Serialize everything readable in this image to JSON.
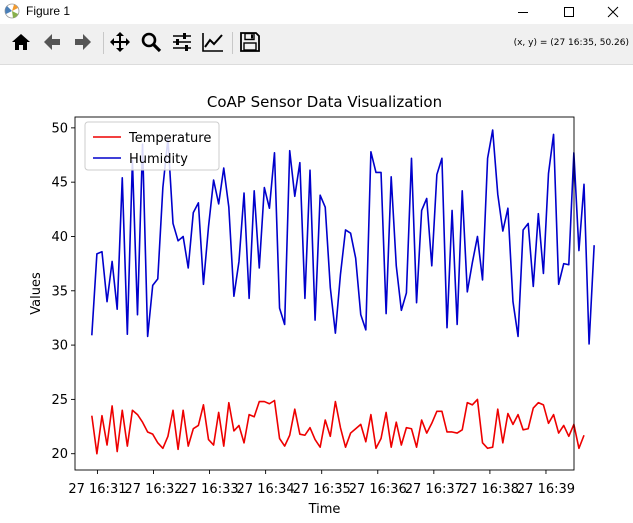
{
  "window": {
    "title": "Figure 1",
    "app_icon": "matplotlib-icon",
    "controls": [
      "minimize-icon",
      "maximize-icon",
      "close-icon"
    ]
  },
  "toolbar": {
    "buttons": [
      {
        "name": "home-button",
        "icon": "home-icon"
      },
      {
        "name": "back-button",
        "icon": "arrow-left-icon"
      },
      {
        "name": "forward-button",
        "icon": "arrow-right-icon"
      },
      {
        "name": "pan-button",
        "icon": "move-icon"
      },
      {
        "name": "zoom-button",
        "icon": "magnifier-icon"
      },
      {
        "name": "configure-subplots-button",
        "icon": "sliders-icon"
      },
      {
        "name": "edit-axis-button",
        "icon": "line-chart-icon"
      },
      {
        "name": "save-button",
        "icon": "floppy-icon"
      }
    ],
    "coords_readout": "(x, y) = (27 16:35, 50.26)"
  },
  "chart_data": {
    "type": "line",
    "title": "CoAP Sensor Data Visualization",
    "xlabel": "Time",
    "ylabel": "Values",
    "ylim": [
      18.5,
      51.0
    ],
    "y_ticks": [
      20,
      25,
      30,
      35,
      40,
      45,
      50
    ],
    "x_tick_labels": [
      "27 16:31",
      "27 16:32",
      "27 16:33",
      "27 16:34",
      "27 16:35",
      "27 16:36",
      "27 16:37",
      "27 16:38",
      "27 16:39"
    ],
    "x_start_minute": 30.9,
    "x_step_minutes": 0.0905,
    "xlim_minutes": [
      30.6,
      39.5
    ],
    "grid": false,
    "legend_position": "top-left",
    "series": [
      {
        "name": "Temperature",
        "color": "#ee0000",
        "values": [
          23.5,
          20.0,
          23.5,
          20.8,
          24.4,
          20.2,
          24.0,
          20.7,
          24.0,
          23.6,
          22.9,
          22.0,
          21.8,
          21.0,
          20.5,
          21.6,
          24.0,
          20.4,
          24.0,
          20.7,
          22.3,
          22.6,
          24.5,
          21.3,
          20.8,
          23.8,
          20.7,
          24.7,
          22.1,
          22.6,
          21.0,
          23.6,
          23.4,
          24.8,
          24.8,
          24.6,
          24.9,
          21.4,
          20.7,
          21.7,
          24.1,
          21.8,
          21.7,
          22.4,
          21.3,
          20.6,
          23.1,
          21.6,
          24.8,
          22.4,
          20.6,
          21.9,
          22.3,
          22.7,
          21.1,
          23.6,
          20.5,
          21.4,
          23.8,
          20.6,
          22.9,
          20.8,
          22.4,
          22.3,
          20.6,
          23.1,
          21.9,
          22.8,
          23.9,
          23.9,
          22.0,
          22.0,
          21.9,
          22.2,
          24.7,
          24.5,
          25.0,
          21.0,
          20.5,
          20.6,
          24.1,
          21.0,
          23.7,
          22.7,
          23.6,
          22.2,
          22.3,
          24.2,
          24.7,
          24.5,
          22.8,
          23.6,
          21.9,
          22.6,
          21.6,
          22.7,
          20.5,
          21.7
        ]
      },
      {
        "name": "Humidity",
        "color": "#0000cc",
        "values": [
          30.9,
          38.4,
          38.6,
          34.0,
          37.7,
          33.3,
          45.4,
          31.0,
          47.0,
          32.8,
          48.5,
          30.8,
          35.5,
          36.1,
          44.5,
          49.0,
          41.2,
          39.6,
          40.0,
          37.1,
          42.2,
          43.1,
          35.6,
          40.9,
          45.2,
          43.0,
          46.3,
          42.7,
          34.5,
          37.7,
          44.0,
          34.3,
          44.2,
          37.1,
          44.5,
          42.6,
          47.7,
          33.4,
          31.9,
          47.9,
          43.7,
          46.8,
          34.3,
          46.1,
          32.3,
          43.8,
          42.7,
          35.3,
          31.1,
          36.5,
          40.6,
          40.3,
          38.0,
          32.8,
          31.4,
          47.8,
          45.9,
          45.9,
          32.9,
          45.5,
          37.3,
          33.2,
          34.8,
          47.2,
          33.9,
          42.4,
          43.5,
          37.3,
          45.7,
          47.2,
          31.6,
          42.4,
          31.9,
          44.2,
          34.9,
          37.6,
          40.0,
          36.0,
          47.2,
          49.8,
          43.9,
          40.5,
          42.6,
          34.0,
          30.8,
          40.6,
          41.2,
          35.4,
          42.1,
          36.6,
          45.8,
          49.4,
          35.6,
          37.5,
          37.4,
          47.7,
          38.7,
          44.8,
          30.1,
          39.2
        ]
      }
    ]
  }
}
